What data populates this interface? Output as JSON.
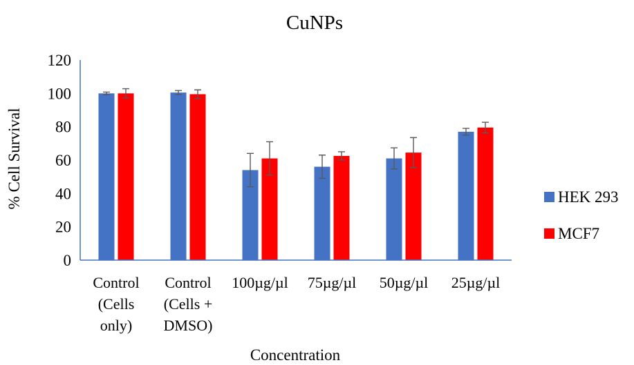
{
  "chart_data": {
    "type": "bar",
    "title": "CuNPs",
    "xlabel": "Concentration",
    "ylabel": "% Cell Survival",
    "ylim": [
      0,
      120
    ],
    "yticks": [
      "0",
      "20",
      "40",
      "60",
      "80",
      "100",
      "120"
    ],
    "categories": [
      [
        "Control",
        "(Cells",
        "only)"
      ],
      [
        "Control",
        "(Cells +",
        "DMSO)"
      ],
      [
        "100µg/µl"
      ],
      [
        "75µg/µl"
      ],
      [
        "50µg/µl"
      ],
      [
        "25µg/µl"
      ]
    ],
    "series": [
      {
        "name": "HEK 293",
        "color": "#4472C4",
        "values": [
          100,
          100.5,
          54,
          56,
          61,
          77
        ],
        "errors": [
          0.8,
          1.2,
          10,
          7,
          6.3,
          2
        ]
      },
      {
        "name": "MCF7",
        "color": "#FF0000",
        "values": [
          100,
          99.5,
          61,
          62.5,
          64.5,
          79.5
        ],
        "errors": [
          2.8,
          2.6,
          10,
          2.5,
          9,
          3.2
        ]
      }
    ],
    "grid": false,
    "legend_position": "right",
    "axis_color": "#4472C4",
    "error_bar_color": "#595959"
  }
}
